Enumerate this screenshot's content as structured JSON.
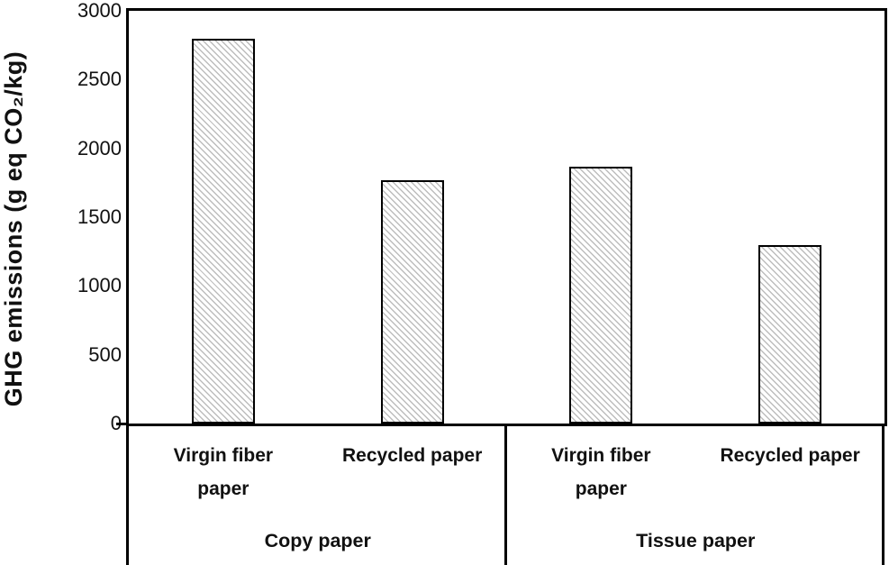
{
  "chart_data": {
    "type": "bar",
    "title": "",
    "xlabel": "",
    "ylabel": "GHG emissions (g eq CO₂/kg)",
    "ylim": [
      0,
      3000
    ],
    "yticks": [
      0,
      500,
      1000,
      1500,
      2000,
      2500,
      3000
    ],
    "grid": false,
    "legend": "none",
    "bar_style": {
      "fill": "#ffffff",
      "hatch": "thin-diagonal-stripe",
      "hatch_color": "#bdbdbd",
      "border_color": "#000000"
    },
    "axis_color": "#000000",
    "groups": [
      {
        "label": "Copy paper",
        "bars": [
          {
            "label": "Virgin fiber\npaper",
            "value": 2800
          },
          {
            "label": "Recycled paper",
            "value": 1770
          }
        ]
      },
      {
        "label": "Tissue paper",
        "bars": [
          {
            "label": "Virgin fiber\npaper",
            "value": 1870
          },
          {
            "label": "Recycled paper",
            "value": 1300
          }
        ]
      }
    ]
  }
}
